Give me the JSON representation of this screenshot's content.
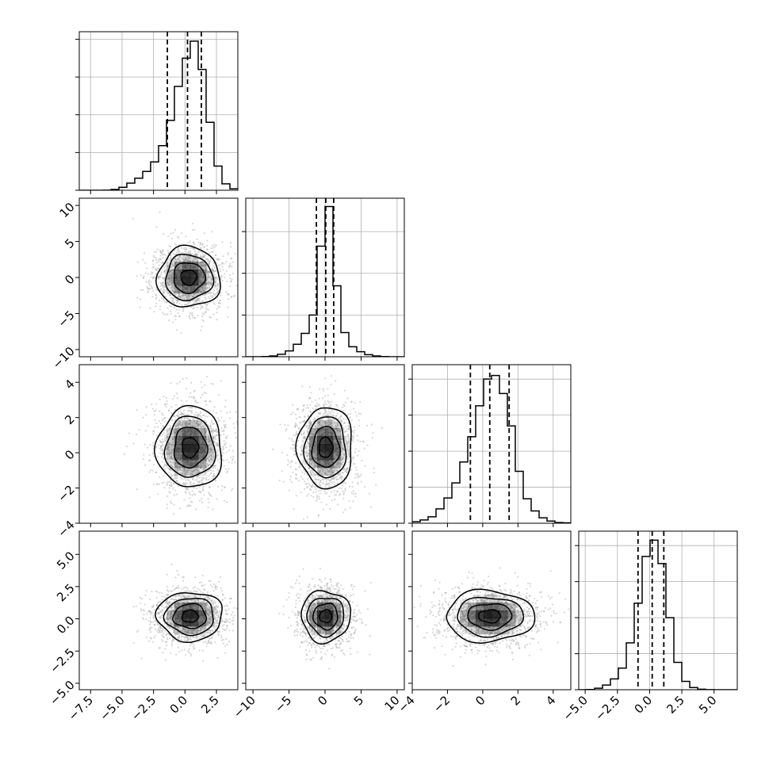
{
  "chart_data": {
    "type": "corner",
    "grid": true,
    "variables": [
      {
        "xlim": [
          -8.4,
          4.2
        ],
        "ticks": [
          -7.5,
          -5.0,
          -2.5,
          0.0,
          2.5
        ],
        "tick_labels": [
          "−7.5",
          "−5.0",
          "−2.5",
          "0.0",
          "2.5"
        ]
      },
      {
        "xlim": [
          -11,
          11
        ],
        "ticks": [
          -10,
          -5,
          0,
          5,
          10
        ],
        "tick_labels": [
          "−10",
          "−5",
          "0",
          "5",
          "10"
        ]
      },
      {
        "xlim": [
          -4,
          5
        ],
        "ticks": [
          -4,
          -2,
          0,
          2,
          4
        ],
        "tick_labels": [
          "−4",
          "−2",
          "0",
          "2",
          "4"
        ]
      },
      {
        "xlim": [
          -5.5,
          6.8
        ],
        "ticks": [
          -5.0,
          -2.5,
          0.0,
          2.5,
          5.0
        ],
        "tick_labels": [
          "−5.0",
          "−2.5",
          "0.0",
          "2.5",
          "5.0"
        ]
      }
    ],
    "histograms": [
      {
        "quantiles": [
          -1.4,
          0.2,
          1.3
        ],
        "ymax": 4200,
        "yticks": [
          0,
          1000,
          2000,
          3000,
          4000
        ],
        "edges": [
          -8.4,
          -7.77,
          -7.14,
          -6.51,
          -5.88,
          -5.25,
          -4.62,
          -3.99,
          -3.36,
          -2.73,
          -2.1,
          -1.47,
          -0.84,
          -0.21,
          0.42,
          1.05,
          1.68,
          2.31,
          2.94,
          3.57,
          4.2
        ],
        "counts": [
          0,
          0,
          0,
          2,
          20,
          80,
          190,
          320,
          500,
          750,
          1180,
          1850,
          2750,
          3500,
          3950,
          3200,
          1800,
          640,
          170,
          40
        ]
      },
      {
        "quantiles": [
          -1.2,
          0.1,
          1.2
        ],
        "ymax": 3800,
        "yticks": [
          0,
          1000,
          2000,
          3000
        ],
        "edges": [
          -11,
          -9.9,
          -8.8,
          -7.7,
          -6.6,
          -5.5,
          -4.4,
          -3.3,
          -2.2,
          -1.1,
          0,
          1.1,
          2.2,
          3.3,
          4.4,
          5.5,
          6.6,
          7.7,
          8.8,
          9.9,
          11
        ],
        "counts": [
          0,
          0,
          5,
          20,
          60,
          140,
          300,
          560,
          1000,
          2650,
          3600,
          1700,
          580,
          240,
          120,
          50,
          20,
          5,
          0,
          0
        ]
      },
      {
        "quantiles": [
          -0.7,
          0.4,
          1.5
        ],
        "ymax": 2200,
        "yticks": [
          0,
          500,
          1000,
          1500,
          2000
        ],
        "edges": [
          -4,
          -3.55,
          -3.1,
          -2.65,
          -2.2,
          -1.75,
          -1.3,
          -0.85,
          -0.4,
          0.05,
          0.5,
          0.95,
          1.4,
          1.85,
          2.3,
          2.75,
          3.2,
          3.65,
          4.1,
          4.55,
          5
        ],
        "counts": [
          20,
          45,
          90,
          200,
          350,
          560,
          850,
          1200,
          1630,
          2000,
          2050,
          1800,
          1350,
          720,
          340,
          170,
          75,
          30,
          10,
          5
        ]
      },
      {
        "quantiles": [
          -0.9,
          0.2,
          1.1
        ],
        "ymax": 4400,
        "yticks": [
          0,
          1000,
          2000,
          3000,
          4000
        ],
        "edges": [
          -5.5,
          -4.885,
          -4.27,
          -3.655,
          -3.04,
          -2.425,
          -1.81,
          -1.195,
          -0.58,
          0.035,
          0.65,
          1.265,
          1.88,
          2.495,
          3.11,
          3.725,
          4.34,
          4.955,
          5.57,
          6.185,
          6.8
        ],
        "counts": [
          0,
          5,
          40,
          130,
          300,
          600,
          1300,
          2400,
          3700,
          4150,
          3500,
          2000,
          760,
          230,
          60,
          15,
          3,
          0,
          0,
          0
        ]
      }
    ],
    "pairs": [
      {
        "x": 0,
        "y": 1,
        "center": [
          0.3,
          0.0
        ],
        "sx": 1.25,
        "sy": 2.1,
        "ylim": [
          -11,
          11
        ],
        "yticks": [
          -10,
          -5,
          0,
          5,
          10
        ],
        "ytick_labels": [
          "−10",
          "−5",
          "0",
          "5",
          "10"
        ]
      },
      {
        "x": 0,
        "y": 2,
        "center": [
          0.4,
          0.3
        ],
        "sx": 1.3,
        "sy": 1.15,
        "ylim": [
          -4,
          5
        ],
        "yticks": [
          -4,
          -2,
          0,
          2,
          4
        ],
        "ytick_labels": [
          "−4",
          "−2",
          "0",
          "2",
          "4"
        ]
      },
      {
        "x": 1,
        "y": 2,
        "center": [
          0.1,
          0.3
        ],
        "sx": 1.9,
        "sy": 1.15,
        "ylim": [
          -4,
          5
        ],
        "yticks": [
          -4,
          -2,
          0,
          2,
          4
        ],
        "ytick_labels": [
          "−4",
          "−2",
          "0",
          "2",
          "4"
        ]
      },
      {
        "x": 0,
        "y": 3,
        "center": [
          0.4,
          0.2
        ],
        "sx": 1.3,
        "sy": 0.95,
        "ylim": [
          -5.5,
          6.8
        ],
        "yticks": [
          -5.0,
          -2.5,
          0.0,
          2.5,
          5.0
        ],
        "ytick_labels": [
          "−5.0",
          "−2.5",
          "0.0",
          "2.5",
          "5.0"
        ]
      },
      {
        "x": 1,
        "y": 3,
        "center": [
          0.1,
          0.2
        ],
        "sx": 1.7,
        "sy": 1.0,
        "ylim": [
          -5.5,
          6.8
        ],
        "yticks": [
          -5.0,
          -2.5,
          0.0,
          2.5,
          5.0
        ],
        "ytick_labels": [
          "−5.0",
          "−2.5",
          "0.0",
          "2.5",
          "5.0"
        ]
      },
      {
        "x": 2,
        "y": 3,
        "center": [
          0.4,
          0.2
        ],
        "sx": 1.25,
        "sy": 1.0,
        "ylim": [
          -5.5,
          6.8
        ],
        "yticks": [
          -5.0,
          -2.5,
          0.0,
          2.5,
          5.0
        ],
        "ytick_labels": [
          "−5.0",
          "−2.5",
          "0.0",
          "2.5",
          "5.0"
        ]
      }
    ],
    "colors": {
      "line": "#000000",
      "grid": "#b0b0b0",
      "scatter": "#a6a6a6",
      "density": "#000000"
    }
  }
}
